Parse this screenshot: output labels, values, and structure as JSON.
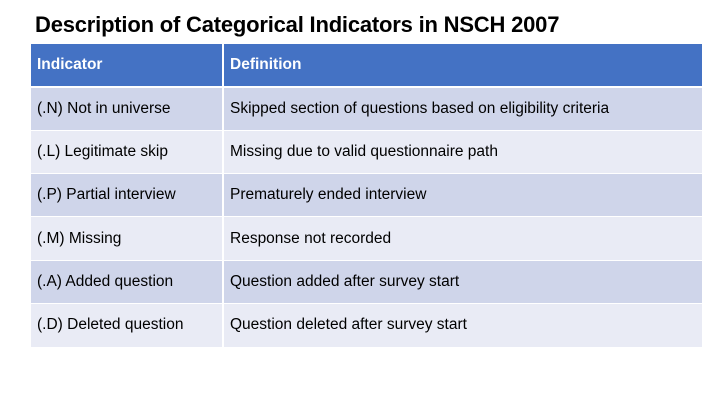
{
  "title": "Description of Categorical Indicators in NSCH 2007",
  "table": {
    "headers": [
      "Indicator",
      "Definition"
    ],
    "rows": [
      {
        "indicator": "(.N) Not in universe",
        "definition": "Skipped section of questions based on eligibility criteria"
      },
      {
        "indicator": "(.L) Legitimate skip",
        "definition": "Missing due to valid questionnaire path"
      },
      {
        "indicator": "(.P) Partial interview",
        "definition": "Prematurely ended interview"
      },
      {
        "indicator": "(.M) Missing",
        "definition": "Response not recorded"
      },
      {
        "indicator": "(.A) Added question",
        "definition": "Question added after survey start"
      },
      {
        "indicator": "(.D) Deleted question",
        "definition": "Question deleted after survey start"
      }
    ]
  },
  "colors": {
    "header_bg": "#4472c4",
    "row_dark": "#cfd5ea",
    "row_light": "#e9ebf5"
  }
}
